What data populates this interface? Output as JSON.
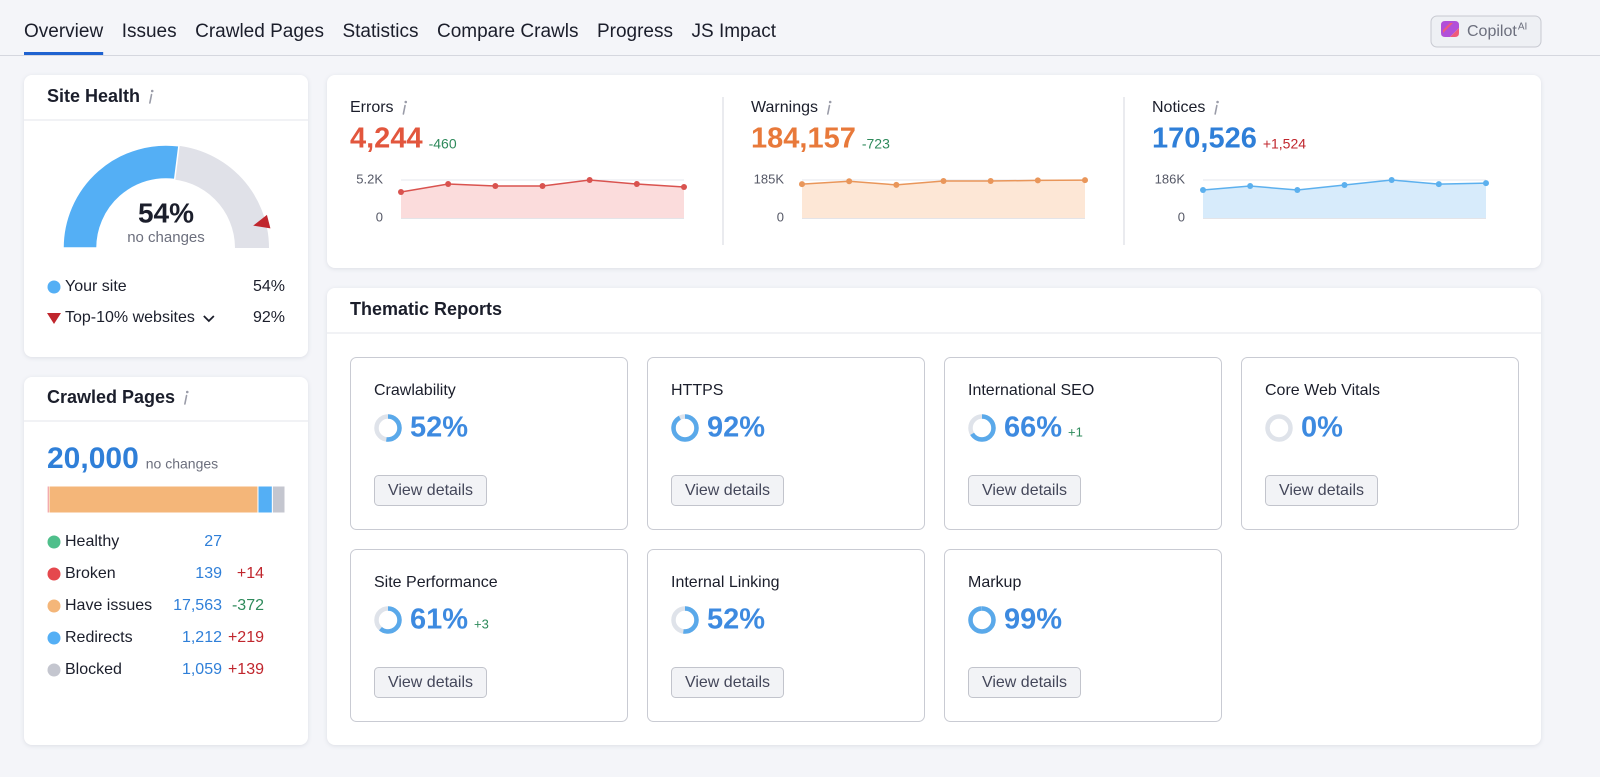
{
  "nav": {
    "tabs": [
      "Overview",
      "Issues",
      "Crawled Pages",
      "Statistics",
      "Compare Crawls",
      "Progress",
      "JS Impact"
    ],
    "active": 0,
    "copilot": {
      "label": "Copilot",
      "badge": "AI"
    }
  },
  "site_health": {
    "title": "Site Health",
    "note": "no changes",
    "legend": [
      {
        "name": "Your site",
        "color": "#54aff5",
        "value": {
          "value": 54,
          "label": "54%"
        }
      },
      {
        "name": "Top-10% websites",
        "color": "#c0262d",
        "value": {
          "value": 92,
          "label": "92%"
        }
      }
    ]
  },
  "crawled_pages": {
    "title": "Crawled Pages",
    "total": {
      "value": 20000,
      "label": "20,000"
    },
    "note": "no changes",
    "segments": [
      {
        "name": "Healthy",
        "color": "#4fbf8b",
        "count": 27
      },
      {
        "name": "Broken",
        "color": "#e5484d",
        "count": 139,
        "change": "+14"
      },
      {
        "name": "Have issues",
        "color": "#f4b679",
        "count": {
          "value": 17563,
          "label": "17,563"
        },
        "change": "-372"
      },
      {
        "name": "Redirects",
        "color": "#54aff5",
        "count": {
          "value": 1212,
          "label": "1,212"
        },
        "change": "+219"
      },
      {
        "name": "Blocked",
        "color": "#c4c6cf",
        "count": {
          "value": 1059,
          "label": "1,059"
        },
        "change": "+139"
      }
    ]
  },
  "issues": [
    {
      "name": "Errors",
      "total": "4,244",
      "change": "-460",
      "color": "#e2563d",
      "line_color": "#d9534f",
      "fill_color": "#fbdcdc",
      "ylim": [
        0,
        5200
      ],
      "yticks": [
        0,
        {
          "value": 5200,
          "label": "5.2K"
        }
      ],
      "values": [
        3560,
        4650,
        4380,
        4380,
        5200,
        4650,
        4244
      ]
    },
    {
      "name": "Warnings",
      "total": "184,157",
      "change": "-723",
      "color": "#e8793a",
      "line_color": "#e9965a",
      "fill_color": "#fde7d6",
      "ylim": [
        0,
        185000
      ],
      "yticks": [
        0,
        {
          "value": 185000,
          "label": "185K"
        }
      ],
      "values": [
        165000,
        179000,
        161000,
        180000,
        180000,
        183000,
        184157
      ]
    },
    {
      "name": "Notices",
      "total": "170,526",
      "change": "+1,524",
      "color": "#2f7fd8",
      "line_color": "#5cb0ee",
      "fill_color": "#d7ebfb",
      "ylim": [
        0,
        186000
      ],
      "yticks": [
        0,
        {
          "value": 186000,
          "label": "186K"
        }
      ],
      "values": [
        137000,
        156600,
        137000,
        161500,
        186000,
        166000,
        170526
      ]
    }
  ],
  "thematic_reports": {
    "title": "Thematic Reports",
    "button": "View details",
    "reports": [
      {
        "name": "Crawlability",
        "score": {
          "value": 52,
          "label": "52%"
        }
      },
      {
        "name": "HTTPS",
        "score": {
          "value": 92,
          "label": "92%"
        }
      },
      {
        "name": "International SEO",
        "score": {
          "value": 66,
          "label": "66%"
        },
        "change": "+1"
      },
      {
        "name": "Core Web Vitals",
        "score": {
          "value": 0,
          "label": "0%"
        }
      },
      {
        "name": "Site Performance",
        "score": {
          "value": 61,
          "label": "61%"
        },
        "change": "+3"
      },
      {
        "name": "Internal Linking",
        "score": {
          "value": 52,
          "label": "52%"
        }
      },
      {
        "name": "Markup",
        "score": {
          "value": 99,
          "label": "99%"
        }
      }
    ]
  }
}
